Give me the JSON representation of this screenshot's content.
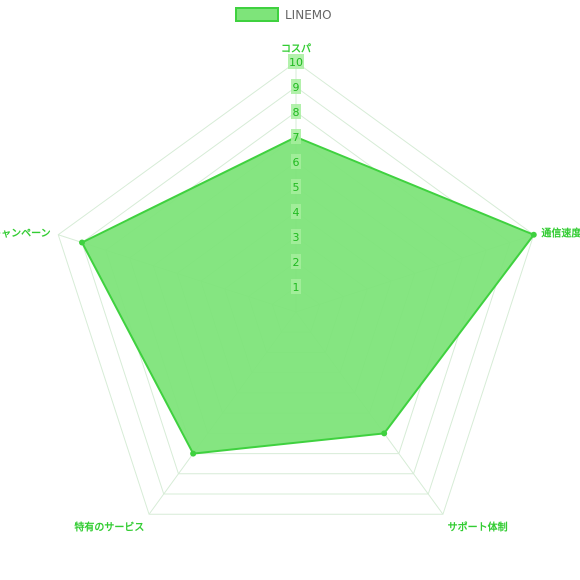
{
  "chart_data": {
    "type": "radar",
    "categories": [
      "コスパ",
      "通信速度",
      "サポート体制",
      "特有のサービス",
      "キャンペーン"
    ],
    "series": [
      {
        "name": "LINEMO",
        "values": [
          7,
          10,
          6,
          7,
          9
        ]
      }
    ],
    "r_ticks": [
      "1",
      "2",
      "3",
      "4",
      "5",
      "6",
      "7",
      "8",
      "9",
      "10"
    ],
    "rlim": [
      0,
      10
    ],
    "grid": true,
    "legend_position": "top",
    "colors": {
      "series_fill": "#7ee47a",
      "series_stroke": "#3fd13f",
      "grid": "#d7ecd7",
      "label": "#33cc33",
      "tick_label": "#22bb22",
      "tick_backdrop": "#a6ee9e",
      "legend_text": "#666666"
    }
  }
}
